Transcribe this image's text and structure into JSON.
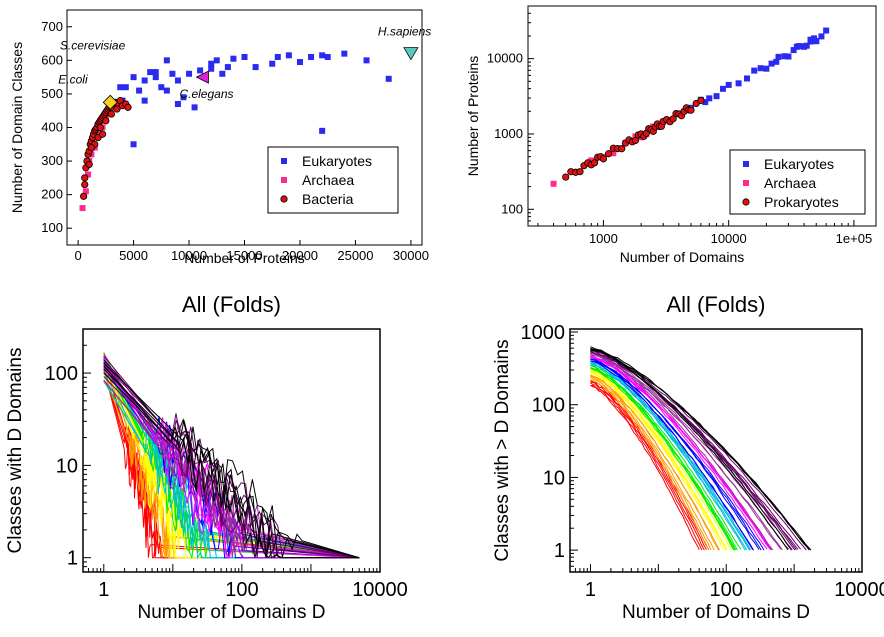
{
  "colors": {
    "eukaryotes": "#2a2af0",
    "archaea": "#ff2a8a",
    "bacteria": "#e01010",
    "hsapiens": "#5cc8c0",
    "ecoli": "#f5d020",
    "celegans": "#e020e0",
    "curve_palette": [
      "#ff0000",
      "#ff9900",
      "#ffff00",
      "#00ee00",
      "#00bbdd",
      "#0000ff",
      "#ff00ff",
      "#993399",
      "#660066",
      "#000000"
    ]
  },
  "chart_data": [
    {
      "type": "scatter",
      "xlabel": "Number of Proteins",
      "ylabel": "Number of Domain Classes",
      "xlim": [
        -1000,
        31000
      ],
      "ylim": [
        50,
        750
      ],
      "xticks": [
        "0",
        "5000",
        "10000",
        "15000",
        "20000",
        "25000",
        "30000"
      ],
      "yticks": [
        "100",
        "200",
        "300",
        "400",
        "500",
        "600",
        "700"
      ],
      "legend": [
        "Eukaryotes",
        "Archaea",
        "Bacteria"
      ],
      "legend_position": "bottom-right",
      "annotations": [
        {
          "label": "H.sapiens",
          "x": 30000,
          "y": 620
        },
        {
          "label": "S.cerevisiae",
          "x": 3500,
          "y": 590
        },
        {
          "label": "E.coli",
          "x": 2900,
          "y": 475
        },
        {
          "label": "C.elegans",
          "x": 11300,
          "y": 550
        }
      ],
      "series": [
        {
          "name": "Eukaryotes",
          "marker": "square",
          "points": [
            [
              3800,
              520
            ],
            [
              4300,
              520
            ],
            [
              5000,
              550
            ],
            [
              5500,
              510
            ],
            [
              6000,
              540
            ],
            [
              6500,
              565
            ],
            [
              7000,
              550
            ],
            [
              7500,
              520
            ],
            [
              8000,
              600
            ],
            [
              8500,
              560
            ],
            [
              9000,
              540
            ],
            [
              9500,
              490
            ],
            [
              10000,
              560
            ],
            [
              10500,
              460
            ],
            [
              11000,
              570
            ],
            [
              12000,
              590
            ],
            [
              12500,
              600
            ],
            [
              13000,
              560
            ],
            [
              14000,
              605
            ],
            [
              15000,
              610
            ],
            [
              16000,
              580
            ],
            [
              17500,
              590
            ],
            [
              18000,
              610
            ],
            [
              19000,
              615
            ],
            [
              20000,
              595
            ],
            [
              21000,
              610
            ],
            [
              22000,
              615
            ],
            [
              22500,
              610
            ],
            [
              24000,
              620
            ],
            [
              26000,
              600
            ],
            [
              28000,
              545
            ],
            [
              22000,
              390
            ],
            [
              5000,
              350
            ],
            [
              4000,
              480
            ],
            [
              6000,
              480
            ],
            [
              8000,
              510
            ],
            [
              9000,
              470
            ],
            [
              12000,
              575
            ],
            [
              7000,
              565
            ],
            [
              13500,
              580
            ]
          ]
        },
        {
          "name": "Archaea",
          "marker": "square",
          "points": [
            [
              400,
              160
            ],
            [
              700,
              210
            ],
            [
              900,
              260
            ],
            [
              1000,
              300
            ],
            [
              1200,
              320
            ],
            [
              1500,
              340
            ],
            [
              1800,
              380
            ],
            [
              2000,
              420
            ],
            [
              2200,
              400
            ],
            [
              2500,
              430
            ]
          ]
        },
        {
          "name": "Bacteria",
          "marker": "circle",
          "points": [
            [
              500,
              195
            ],
            [
              600,
              230
            ],
            [
              700,
              280
            ],
            [
              800,
              300
            ],
            [
              900,
              320
            ],
            [
              1000,
              330
            ],
            [
              1100,
              350
            ],
            [
              1200,
              360
            ],
            [
              1300,
              370
            ],
            [
              1400,
              380
            ],
            [
              1500,
              390
            ],
            [
              1600,
              395
            ],
            [
              1700,
              400
            ],
            [
              1800,
              410
            ],
            [
              1900,
              415
            ],
            [
              2000,
              420
            ],
            [
              2100,
              425
            ],
            [
              2200,
              430
            ],
            [
              2300,
              435
            ],
            [
              2400,
              440
            ],
            [
              2500,
              445
            ],
            [
              2600,
              450
            ],
            [
              2700,
              455
            ],
            [
              2800,
              460
            ],
            [
              2900,
              465
            ],
            [
              3000,
              460
            ],
            [
              3200,
              470
            ],
            [
              3400,
              475
            ],
            [
              3600,
              470
            ],
            [
              3800,
              480
            ],
            [
              4000,
              465
            ],
            [
              4300,
              470
            ],
            [
              1000,
              290
            ],
            [
              1500,
              350
            ],
            [
              2000,
              400
            ],
            [
              2500,
              420
            ],
            [
              3000,
              440
            ],
            [
              1200,
              340
            ],
            [
              1800,
              370
            ],
            [
              3500,
              455
            ],
            [
              600,
              250
            ],
            [
              2200,
              380
            ],
            [
              4500,
              460
            ]
          ]
        },
        {
          "name": "H.sapiens",
          "marker": "triangle-down",
          "points": [
            [
              30000,
              620
            ]
          ]
        },
        {
          "name": "E.coli",
          "marker": "diamond",
          "points": [
            [
              2900,
              475
            ]
          ]
        },
        {
          "name": "C.elegans",
          "marker": "triangle-left",
          "points": [
            [
              11300,
              550
            ]
          ]
        }
      ]
    },
    {
      "type": "scatter",
      "xlabel": "Number of Domains",
      "ylabel": "Number of Proteins",
      "xscale": "log",
      "yscale": "log",
      "xlim": [
        250,
        150000
      ],
      "ylim": [
        60,
        50000
      ],
      "xticks": [
        "1000",
        "10000",
        "1e+05"
      ],
      "yticks": [
        "100",
        "1000",
        "10000"
      ],
      "legend": [
        "Eukaryotes",
        "Archaea",
        "Prokaryotes"
      ],
      "legend_position": "bottom-right",
      "fit": {
        "a": 0.88,
        "b": 0.92
      },
      "series": [
        {
          "name": "Eukaryotes",
          "marker": "square",
          "x": [
            5000,
            6000,
            7000,
            8000,
            9000,
            10000,
            12000,
            14000,
            16000,
            18000,
            20000,
            22000,
            25000,
            28000,
            30000,
            33000,
            36000,
            40000,
            42000,
            45000,
            48000,
            50000,
            55000,
            60000,
            45000,
            50000,
            38000,
            35000,
            24000,
            6500
          ]
        },
        {
          "name": "Archaea",
          "marker": "square",
          "x": [
            400,
            800,
            1000,
            1200,
            1500,
            1800,
            2000,
            2200,
            2500,
            3000
          ]
        },
        {
          "name": "Prokaryotes",
          "marker": "circle",
          "x": [
            500,
            550,
            600,
            650,
            700,
            750,
            800,
            850,
            900,
            950,
            1000,
            1100,
            1200,
            1300,
            1400,
            1500,
            1600,
            1700,
            1800,
            1900,
            2000,
            2100,
            2200,
            2300,
            2400,
            2500,
            2600,
            2700,
            2800,
            2900,
            3000,
            3200,
            3400,
            3600,
            3800,
            4000,
            4200,
            4400,
            4600,
            4800,
            5000,
            5500,
            6000
          ]
        }
      ]
    },
    {
      "type": "line",
      "title": "All (Folds)",
      "xlabel": "Number of Domains D",
      "ylabel": "Classes with D Domains",
      "xscale": "log",
      "yscale": "log",
      "xlim": [
        0.5,
        10000
      ],
      "ylim": [
        0.7,
        300
      ],
      "xticks": [
        "1",
        "100",
        "10000"
      ],
      "yticks": [
        "1",
        "10",
        "100"
      ],
      "curve_groups": 10,
      "curves_per_group": 5,
      "description_values": {
        "start_y": [
          170,
          80
        ],
        "end_x": [
          5,
          600
        ]
      }
    },
    {
      "type": "line",
      "title": "All (Folds)",
      "xlabel": "Number of Domains D",
      "ylabel": "Classes with > D Domains",
      "xscale": "log",
      "yscale": "log",
      "xlim": [
        0.5,
        10000
      ],
      "ylim": [
        0.5,
        1100
      ],
      "xticks": [
        "1",
        "100",
        "10000"
      ],
      "yticks": [
        "1",
        "10",
        "100",
        "1000"
      ],
      "curve_groups": 10,
      "curves_per_group": 5,
      "description_values": {
        "start_y": [
          180,
          620
        ],
        "end_x": [
          40,
          1800
        ]
      }
    }
  ]
}
